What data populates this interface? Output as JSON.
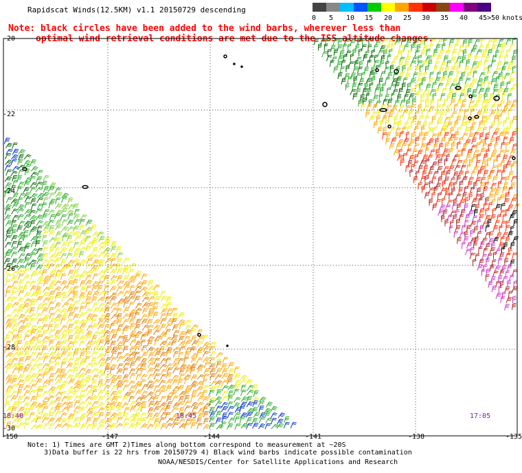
{
  "title": "Rapidscat Winds(12.5KM) v1.1 20150729 descending",
  "note": {
    "line1": "Note: black circles have been added to the wind barbs, wherever less than",
    "line2": "optimal wind retrieval conditions are met due to the ISS altitude changes."
  },
  "colorbar": {
    "labels": [
      "0",
      "5",
      "10",
      "15",
      "20",
      "25",
      "30",
      "35",
      "40",
      "45",
      ">50"
    ],
    "unit": "knots",
    "colors": [
      "#444444",
      "#888888",
      "#00bfff",
      "#0055ff",
      "#00cc00",
      "#ffff00",
      "#ffa500",
      "#ff3300",
      "#cc0000",
      "#8b4513",
      "#ff00ff",
      "#800080",
      "#4b0082"
    ]
  },
  "axes": {
    "lat_labels": [
      "-20",
      "-22",
      "-24",
      "-26",
      "-28",
      "-30"
    ],
    "lon_labels": [
      "-150",
      "-147",
      "-144",
      "-141",
      "-138",
      "-135"
    ]
  },
  "times": [
    "18:40",
    "18:45",
    "17:05"
  ],
  "footer": {
    "line1": "Note: 1) Times are GMT 2)Times along bottom correspond to measurement at ~20S",
    "line2": "3)Data buffer is 22 hrs from 20150729 4) Black wind barbs indicate possible contamination",
    "credit": "NOAA/NESDIS/Center for Satellite Applications and Research"
  }
}
